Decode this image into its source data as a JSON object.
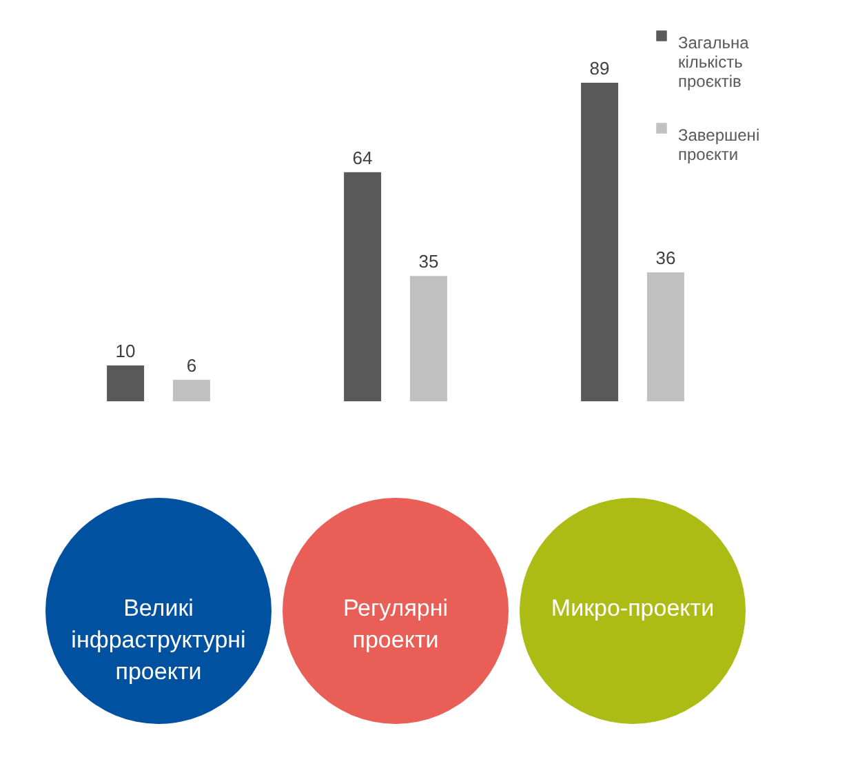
{
  "chart_data": {
    "type": "bar",
    "categories": [
      "Великі інфраструктурні проекти",
      "Регулярні проекти",
      "Микро-проекти"
    ],
    "series": [
      {
        "name": "Загальна кількість проєктів",
        "color": "#595959",
        "values": [
          10,
          64,
          89
        ]
      },
      {
        "name": "Завершені проєкти",
        "color": "#c0c0c0",
        "values": [
          6,
          35,
          36
        ]
      }
    ],
    "data_labels": true,
    "legend": "top right"
  }
}
